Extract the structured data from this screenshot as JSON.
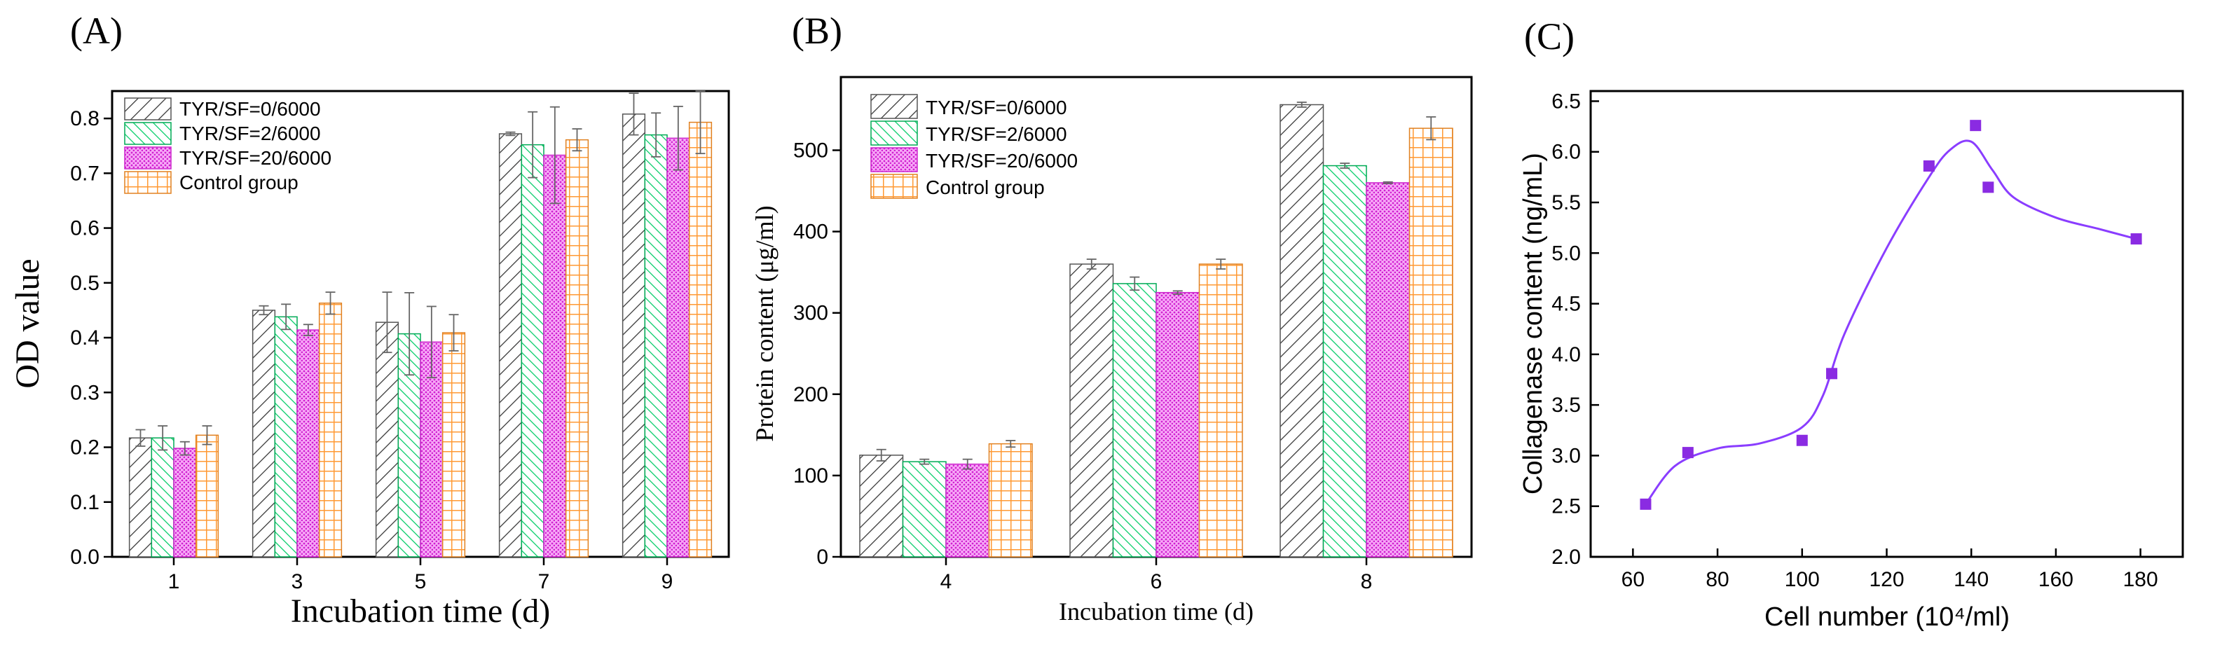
{
  "colors": {
    "tyr0": "#333333",
    "tyr2": "#00cc66",
    "tyr20": "#e040e0",
    "control": "#ff9933",
    "curve": "#8a3dff",
    "points": "#8a2be2"
  },
  "chart_data": [
    {
      "panel_label": "(A)",
      "type": "bar",
      "xlabel": "Incubation time (d)",
      "ylabel": "OD value",
      "categories": [
        "1",
        "3",
        "5",
        "7",
        "9"
      ],
      "ylim": [
        0,
        0.85
      ],
      "yticks": [
        "0.0",
        "0.1",
        "0.2",
        "0.3",
        "0.4",
        "0.5",
        "0.6",
        "0.7",
        "0.8"
      ],
      "legend_position": "top-left",
      "series": [
        {
          "name": "TYR/SF=0/6000",
          "pattern": "hatch-dark",
          "values": [
            0.217,
            0.45,
            0.428,
            0.772,
            0.808
          ],
          "errors": [
            0.015,
            0.008,
            0.055,
            0.003,
            0.038
          ]
        },
        {
          "name": "TYR/SF=2/6000",
          "pattern": "hatch-green",
          "values": [
            0.217,
            0.438,
            0.407,
            0.752,
            0.77
          ],
          "errors": [
            0.022,
            0.023,
            0.075,
            0.06,
            0.04
          ]
        },
        {
          "name": "TYR/SF=20/6000",
          "pattern": "dots-magenta",
          "values": [
            0.198,
            0.414,
            0.392,
            0.733,
            0.764
          ],
          "errors": [
            0.012,
            0.01,
            0.065,
            0.088,
            0.058
          ]
        },
        {
          "name": "Control group",
          "pattern": "grid-orange",
          "values": [
            0.222,
            0.463,
            0.409,
            0.761,
            0.793
          ],
          "errors": [
            0.017,
            0.02,
            0.033,
            0.02,
            0.057
          ]
        }
      ]
    },
    {
      "panel_label": "(B)",
      "type": "bar",
      "xlabel": "Incubation time (d)",
      "ylabel": "Protein content (μg/ml)",
      "categories": [
        "4",
        "6",
        "8"
      ],
      "ylim": [
        0,
        590
      ],
      "yticks": [
        "0",
        "100",
        "200",
        "300",
        "400",
        "500"
      ],
      "legend_position": "top-left",
      "series": [
        {
          "name": "TYR/SF=0/6000",
          "pattern": "hatch-dark",
          "values": [
            125,
            360,
            556
          ],
          "errors": [
            7,
            6,
            3
          ]
        },
        {
          "name": "TYR/SF=2/6000",
          "pattern": "hatch-green",
          "values": [
            117,
            336,
            481
          ],
          "errors": [
            3,
            8,
            3
          ]
        },
        {
          "name": "TYR/SF=20/6000",
          "pattern": "dots-magenta",
          "values": [
            114,
            325,
            460
          ],
          "errors": [
            6,
            2,
            1
          ]
        },
        {
          "name": "Control group",
          "pattern": "grid-orange",
          "values": [
            139,
            360,
            527
          ],
          "errors": [
            4,
            6,
            14
          ]
        }
      ]
    },
    {
      "panel_label": "(C)",
      "type": "scatter",
      "xlabel": "Cell number (10⁴/ml)",
      "ylabel": "Collagenase  content (ng/mL)",
      "xlim": [
        50,
        190
      ],
      "ylim": [
        2.0,
        6.6
      ],
      "xticks": [
        "60",
        "80",
        "100",
        "120",
        "140",
        "160",
        "180"
      ],
      "yticks": [
        "2.0",
        "2.5",
        "3.0",
        "3.5",
        "4.0",
        "4.5",
        "5.0",
        "5.5",
        "6.0",
        "6.5"
      ],
      "points": [
        {
          "x": 63,
          "y": 2.52
        },
        {
          "x": 73,
          "y": 3.03
        },
        {
          "x": 100,
          "y": 3.15
        },
        {
          "x": 107,
          "y": 3.81
        },
        {
          "x": 130,
          "y": 5.86
        },
        {
          "x": 141,
          "y": 6.26
        },
        {
          "x": 144,
          "y": 5.65
        },
        {
          "x": 179,
          "y": 5.14
        }
      ],
      "curve": [
        {
          "x": 63,
          "y": 2.52
        },
        {
          "x": 70,
          "y": 2.9
        },
        {
          "x": 80,
          "y": 3.07
        },
        {
          "x": 90,
          "y": 3.12
        },
        {
          "x": 100,
          "y": 3.28
        },
        {
          "x": 105,
          "y": 3.6
        },
        {
          "x": 110,
          "y": 4.2
        },
        {
          "x": 120,
          "y": 5.05
        },
        {
          "x": 130,
          "y": 5.75
        },
        {
          "x": 135,
          "y": 6.02
        },
        {
          "x": 140,
          "y": 6.1
        },
        {
          "x": 145,
          "y": 5.82
        },
        {
          "x": 150,
          "y": 5.55
        },
        {
          "x": 160,
          "y": 5.35
        },
        {
          "x": 170,
          "y": 5.24
        },
        {
          "x": 179,
          "y": 5.14
        }
      ]
    }
  ]
}
